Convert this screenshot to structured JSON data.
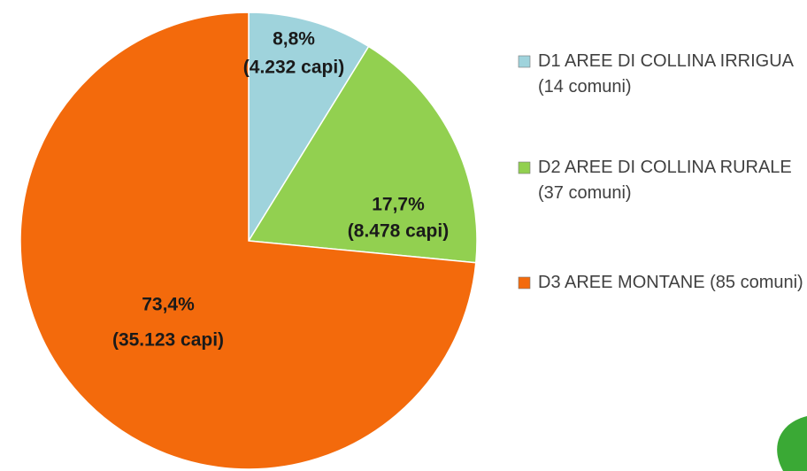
{
  "chart_data": {
    "type": "pie",
    "categories": [
      "D1 AREE DI COLLINA IRRIGUA (14 comuni)",
      "D2 AREE DI COLLINA RURALE (37 comuni)",
      "D3 AREE MONTANE (85 comuni)"
    ],
    "values": [
      8.8,
      17.7,
      73.4
    ],
    "value_labels": [
      "8,8%",
      "17,7%",
      "73,4%"
    ],
    "count_labels": [
      "(4.232 capi)",
      "(8.478 capi)",
      "(35.123 capi)"
    ],
    "colors": [
      "#9fd3dc",
      "#92d050",
      "#f36a0c"
    ],
    "legend": "right"
  }
}
